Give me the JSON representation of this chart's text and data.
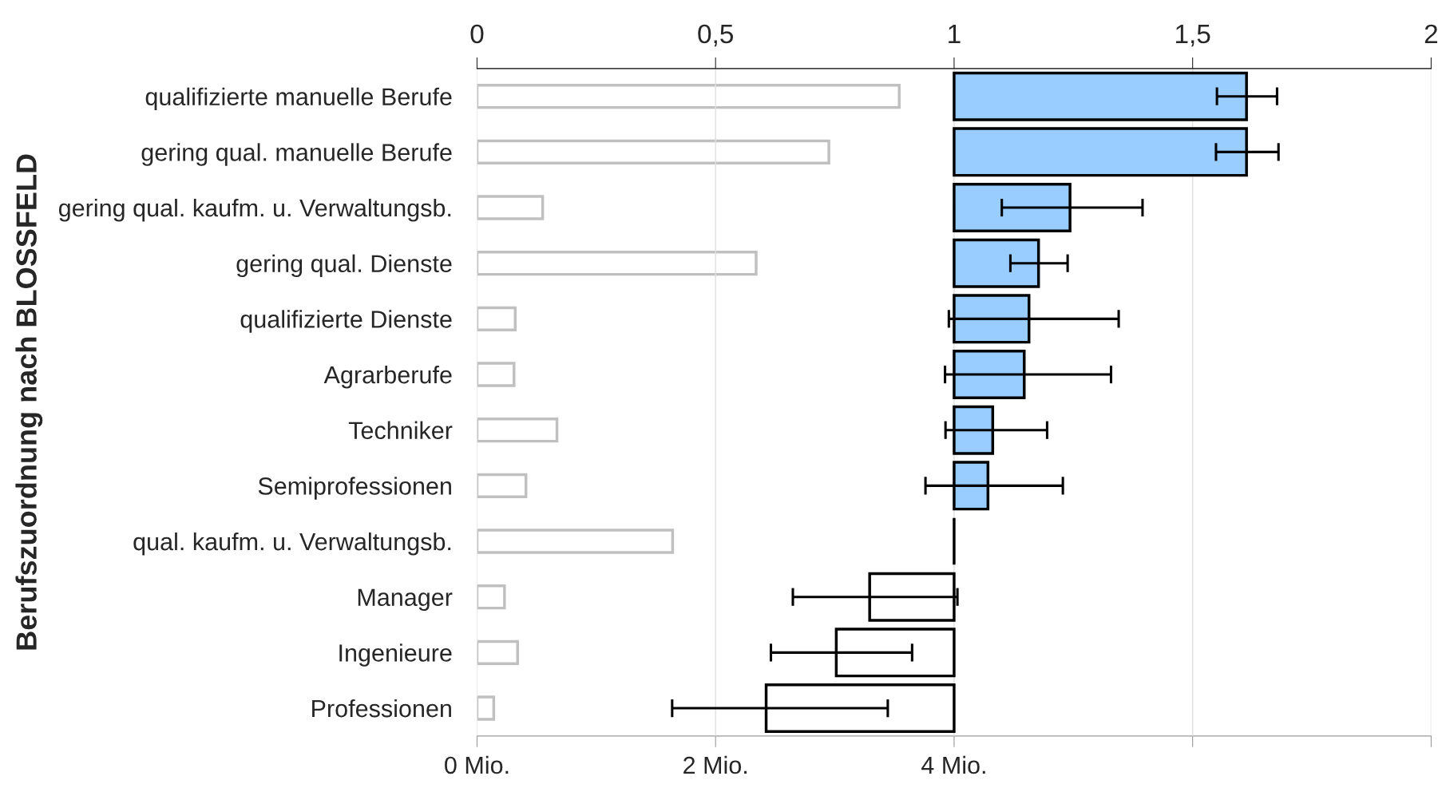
{
  "chart_data": {
    "type": "bar",
    "orientation": "horizontal",
    "ylabel": "Berufszuordnung nach BLOSSFELD",
    "categories": [
      "qualifizierte manuelle Berufe",
      "gering qual. manuelle Berufe",
      "gering qual. kaufm. u. Verwaltungsb.",
      "gering qual. Dienste",
      "qualifizierte Dienste",
      "Agrarberufe",
      "Techniker",
      "Semiprofessionen",
      "qual. kaufm. u. Verwaltungsb.",
      "Manager",
      "Ingenieure",
      "Professionen"
    ],
    "series": [
      {
        "color": "#c0c0c0",
        "values": [
          3.54,
          2.95,
          0.55,
          2.34,
          0.32,
          0.31,
          0.67,
          0.41,
          1.64,
          0.23,
          0.34,
          0.14
        ]
      },
      {
        "axis": "x2",
        "colors": [
          "#99ccff",
          "#99ccff",
          "#99ccff",
          "#99ccff",
          "#99ccff",
          "#99ccff",
          "#99ccff",
          "#99ccff",
          "#000000",
          "#ffffff",
          "#ffffff",
          "#ffffff"
        ],
        "base": [
          1,
          1,
          1,
          1,
          1,
          1,
          1,
          1,
          1,
          1,
          1,
          1
        ],
        "values": [
          0.613,
          0.613,
          0.243,
          0.177,
          0.157,
          0.147,
          0.081,
          0.071,
          0,
          -0.177,
          -0.247,
          -0.394
        ],
        "errors": [
          [
            1.551,
            1.677
          ],
          [
            1.549,
            1.68
          ],
          [
            1.1,
            1.395
          ],
          [
            1.118,
            1.238
          ],
          [
            0.989,
            1.345
          ],
          [
            0.981,
            1.329
          ],
          [
            0.982,
            1.195
          ],
          [
            0.94,
            1.228
          ],
          null,
          [
            0.662,
            1.007
          ],
          [
            0.616,
            0.912
          ],
          [
            0.409,
            0.861
          ]
        ]
      }
    ],
    "xlim": [
      0,
      8
    ],
    "xticks": [
      {
        "value": 0,
        "label": "0 Mio."
      },
      {
        "value": 2,
        "label": "2 Mio."
      },
      {
        "value": 4,
        "label": "4 Mio."
      },
      {
        "value": 6,
        "label": null
      },
      {
        "value": 8,
        "label": null
      }
    ],
    "x2lim": [
      0,
      2
    ],
    "x2ticks": [
      0,
      {
        "value": 0.5,
        "label": "0,5"
      },
      1,
      {
        "value": 1.5,
        "label": "1,5"
      },
      2
    ],
    "grid": "x",
    "legend": false
  }
}
